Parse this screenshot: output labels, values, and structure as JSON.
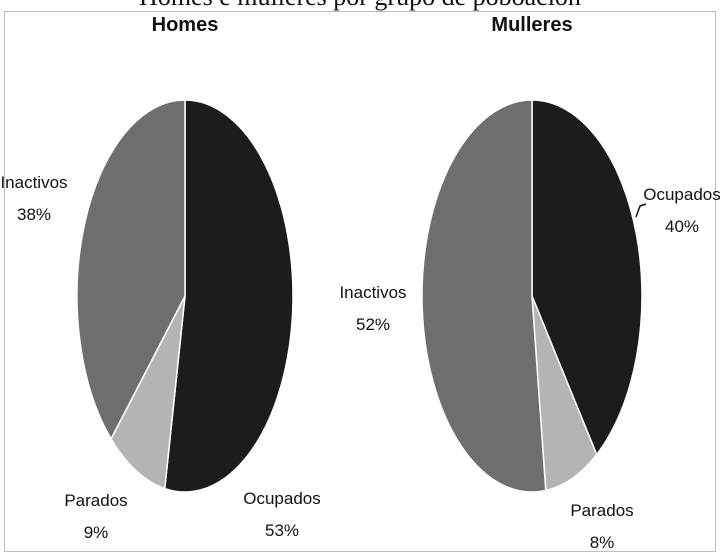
{
  "caption": "Homes e mulleres por grupo de poboación",
  "chart_data": [
    {
      "type": "pie",
      "title": "Homes",
      "slices": [
        {
          "label": "Ocupados",
          "value": 53,
          "display": "53%",
          "color": "#1c1c1c"
        },
        {
          "label": "Parados",
          "value": 9,
          "display": "9%",
          "color": "#b4b4b4"
        },
        {
          "label": "Inactivos",
          "value": 38,
          "display": "38%",
          "color": "#6e6e6e"
        }
      ]
    },
    {
      "type": "pie",
      "title": "Mulleres",
      "slices": [
        {
          "label": "Ocupados",
          "value": 40,
          "display": "40%",
          "color": "#1c1c1c"
        },
        {
          "label": "Parados",
          "value": 8,
          "display": "8%",
          "color": "#b4b4b4"
        },
        {
          "label": "Inactivos",
          "value": 52,
          "display": "52%",
          "color": "#6e6e6e"
        }
      ]
    }
  ]
}
